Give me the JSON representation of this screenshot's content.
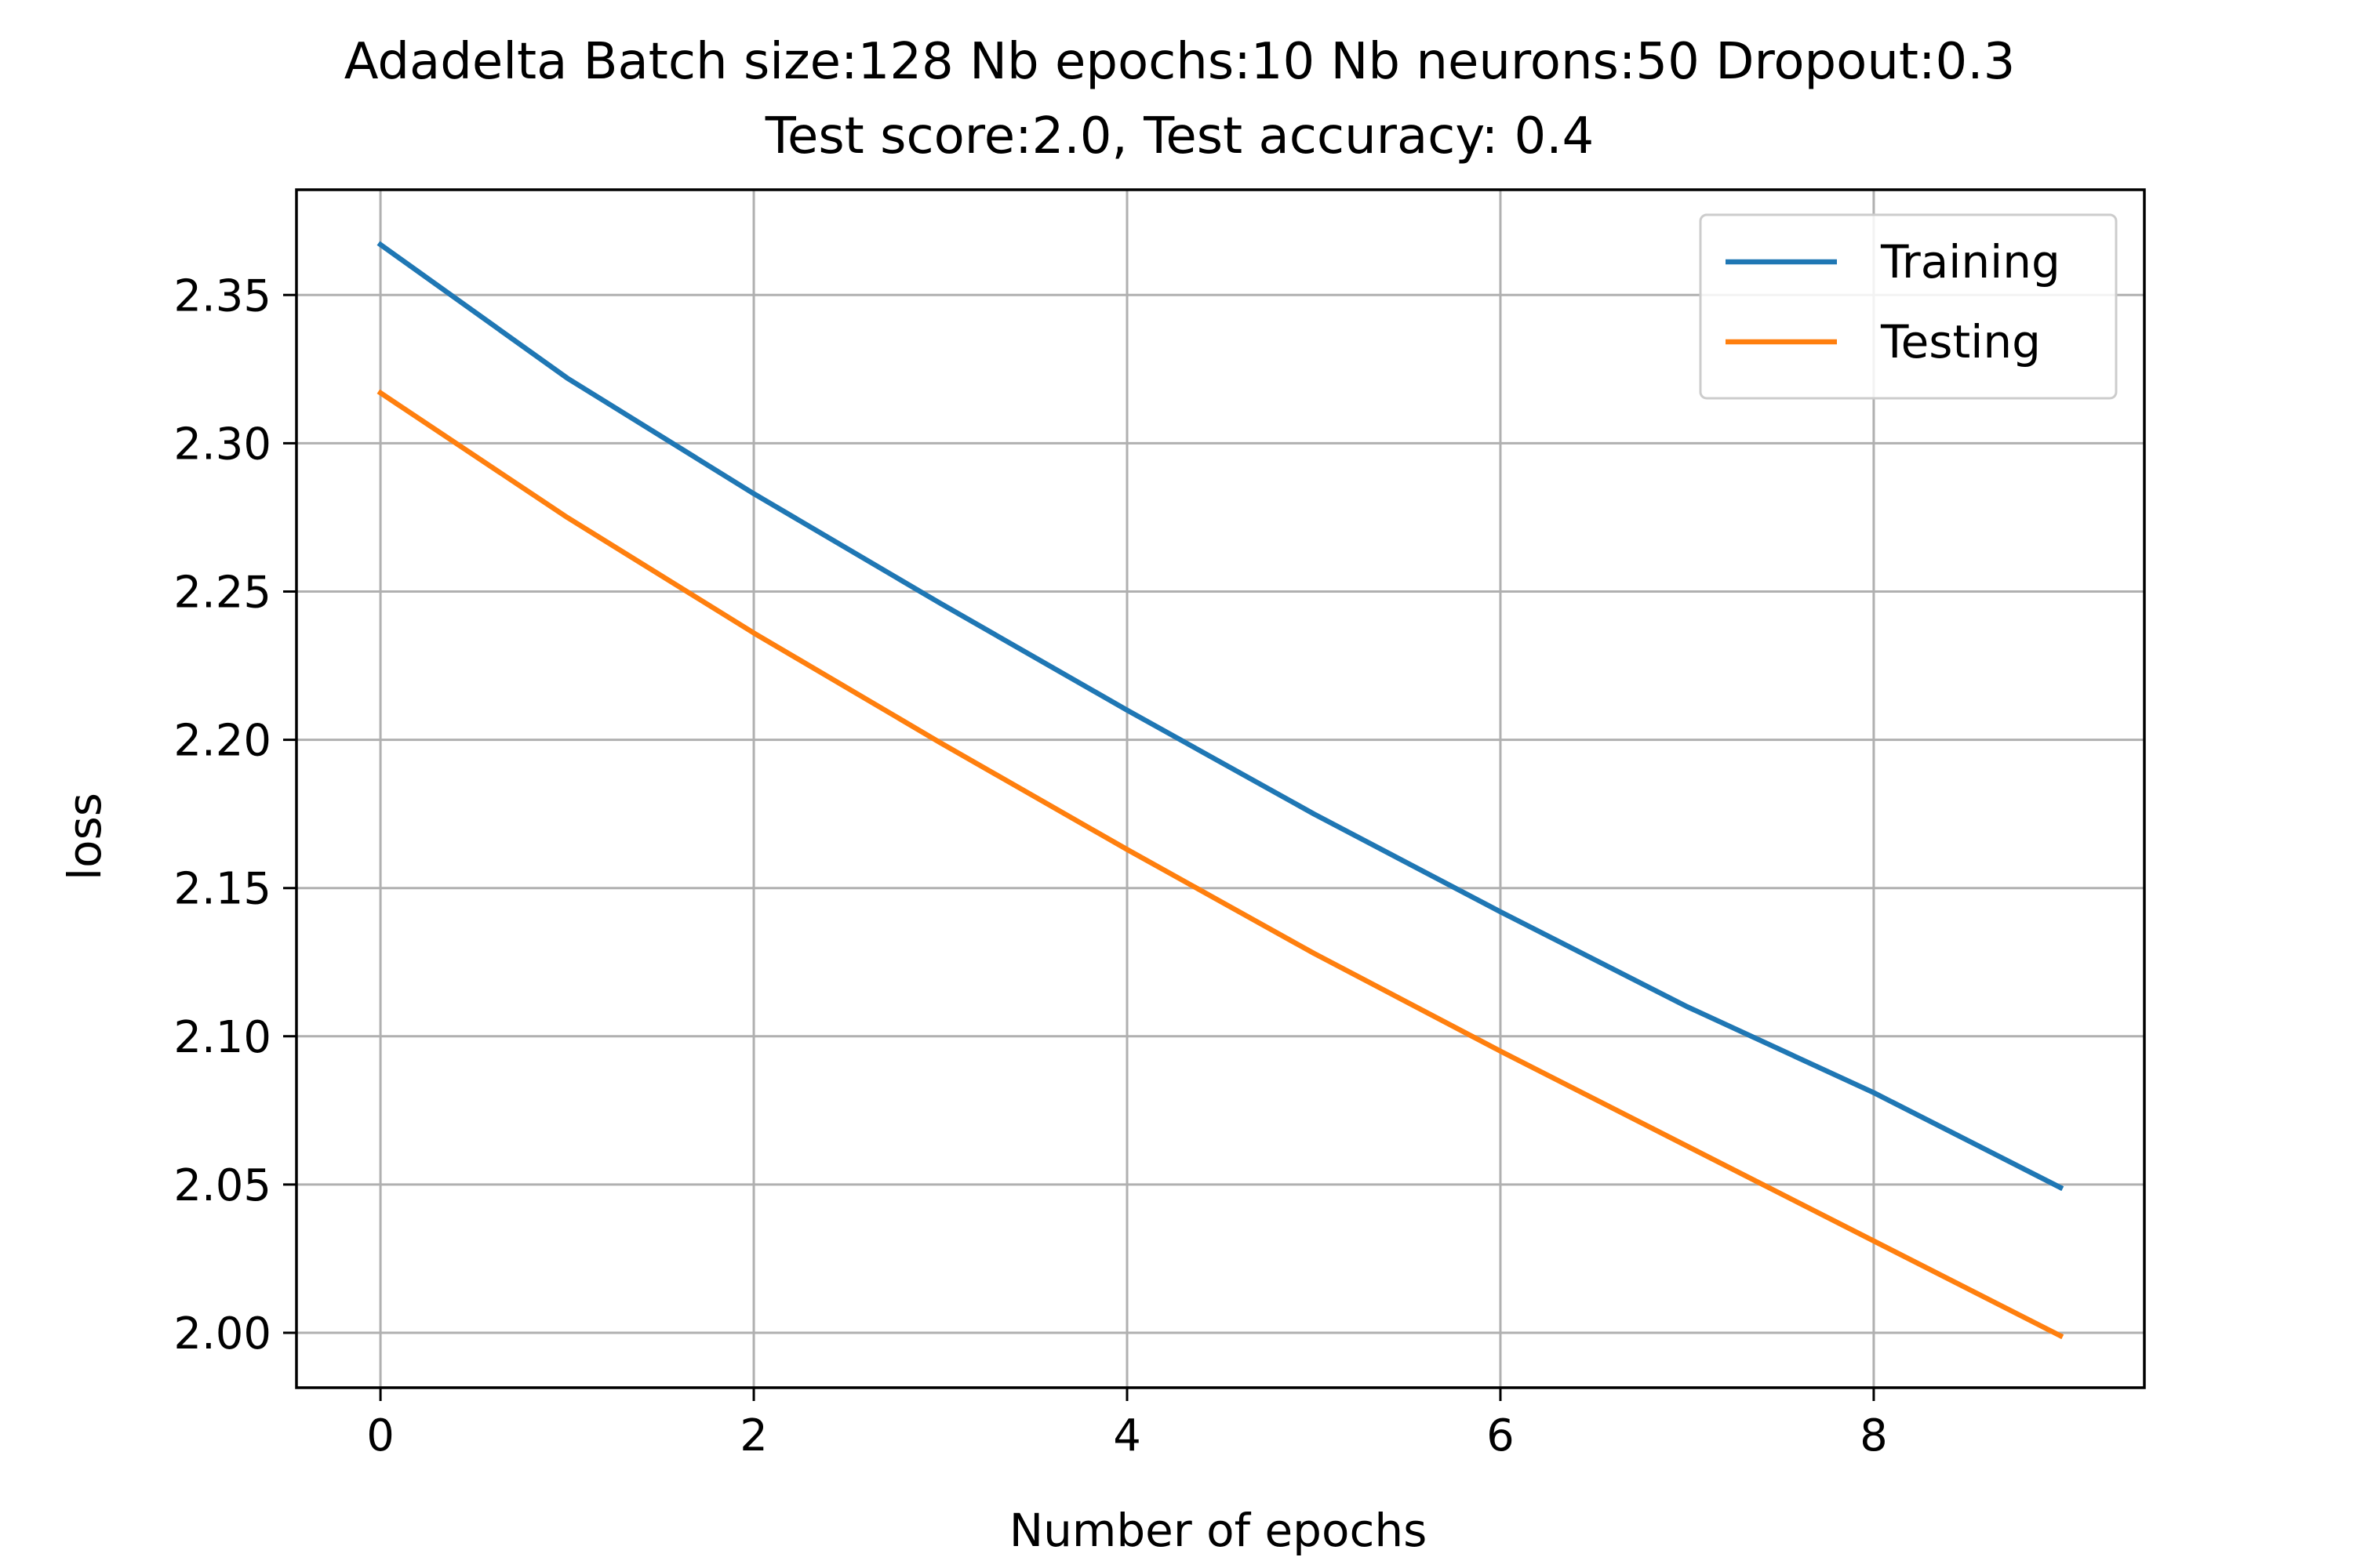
{
  "chart_data": {
    "type": "line",
    "title": "Adadelta Batch size:128 Nb epochs:10 Nb neurons:50 Dropout:0.3",
    "subtitle": "Test score:2.0, Test accuracy: 0.4",
    "xlabel": "Number of epochs",
    "ylabel": "loss",
    "x": [
      0,
      1,
      2,
      3,
      4,
      5,
      6,
      7,
      8,
      9
    ],
    "series": [
      {
        "name": "Training",
        "color": "#1f77b4",
        "values": [
          2.367,
          2.322,
          2.283,
          2.246,
          2.21,
          2.175,
          2.142,
          2.11,
          2.081,
          2.049
        ]
      },
      {
        "name": "Testing",
        "color": "#ff7f0e",
        "values": [
          2.317,
          2.275,
          2.236,
          2.199,
          2.163,
          2.128,
          2.095,
          2.063,
          2.031,
          1.999
        ]
      }
    ],
    "xlim": [
      -0.45,
      9.45
    ],
    "ylim": [
      1.9815,
      2.3855
    ],
    "xticks": [
      0,
      2,
      4,
      6,
      8
    ],
    "xtick_labels": [
      "0",
      "2",
      "4",
      "6",
      "8"
    ],
    "yticks": [
      2.0,
      2.05,
      2.1,
      2.15,
      2.2,
      2.25,
      2.3,
      2.35
    ],
    "ytick_labels": [
      "2.00",
      "2.05",
      "2.10",
      "2.15",
      "2.20",
      "2.25",
      "2.30",
      "2.35"
    ],
    "grid": true,
    "legend_position": "top-right",
    "grid_color": "#b0b0b0",
    "axis_color": "#000000"
  }
}
